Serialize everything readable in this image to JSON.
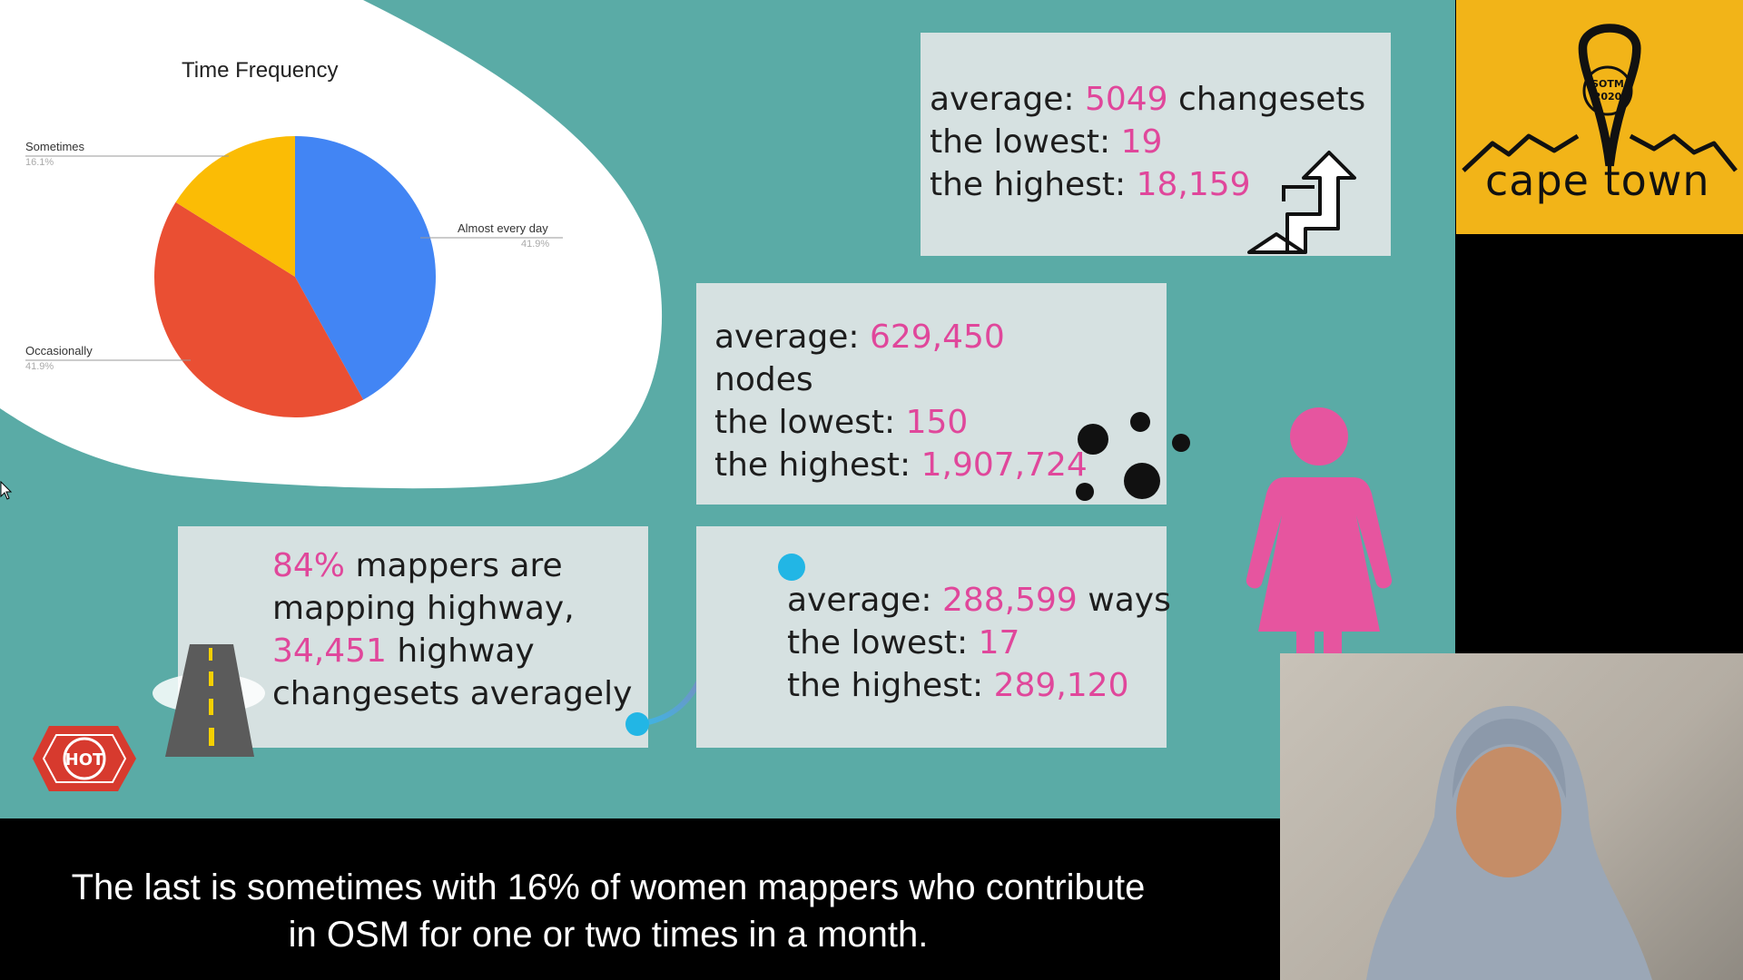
{
  "chart_data": {
    "type": "pie",
    "title": "Time Frequency",
    "categories": [
      "Almost every day",
      "Occasionally",
      "Sometimes"
    ],
    "values": [
      41.9,
      41.9,
      16.1
    ],
    "labels": [
      {
        "name": "Almost every day",
        "pct": "41.9%"
      },
      {
        "name": "Occasionally",
        "pct": "41.9%"
      },
      {
        "name": "Sometimes",
        "pct": "16.1%"
      }
    ],
    "colors": [
      "#4285f4",
      "#ea4f33",
      "#fbbc05"
    ]
  },
  "changesets": {
    "avg_label": "average: ",
    "avg_value": "5049",
    "avg_unit": " changesets",
    "low_label": "the lowest: ",
    "low_value": "19",
    "high_label": "the highest: ",
    "high_value": "18,159"
  },
  "nodes": {
    "avg_label": "average: ",
    "avg_value": "629,450",
    "unit": "nodes",
    "low_label": "the lowest: ",
    "low_value": "150",
    "high_label": "the highest: ",
    "high_value": "1,907,724"
  },
  "highway": {
    "pct_value": "84%",
    "pct_text": " mappers are",
    "line2": "mapping highway,",
    "count_value": "34,451",
    "count_text": " highway",
    "line4": "changesets averagely"
  },
  "ways": {
    "avg_label": "average: ",
    "avg_value": "288,599",
    "avg_unit": " ways",
    "low_label": "the lowest: ",
    "low_value": "17",
    "high_label": "the highest: ",
    "high_value": "289,120"
  },
  "logo": {
    "badge_line1": "SOTM",
    "badge_line2": "2020",
    "text": "cape town"
  },
  "hot_logo": "HOT",
  "caption": {
    "line1": "The last is sometimes with 16% of women mappers who contribute",
    "line2": "in OSM for one or two times in a month."
  },
  "colors": {
    "slide_bg": "#5aaba6",
    "highlight": "#e0479b",
    "logo_bg": "#f2b418",
    "woman_icon": "#e6559f"
  }
}
